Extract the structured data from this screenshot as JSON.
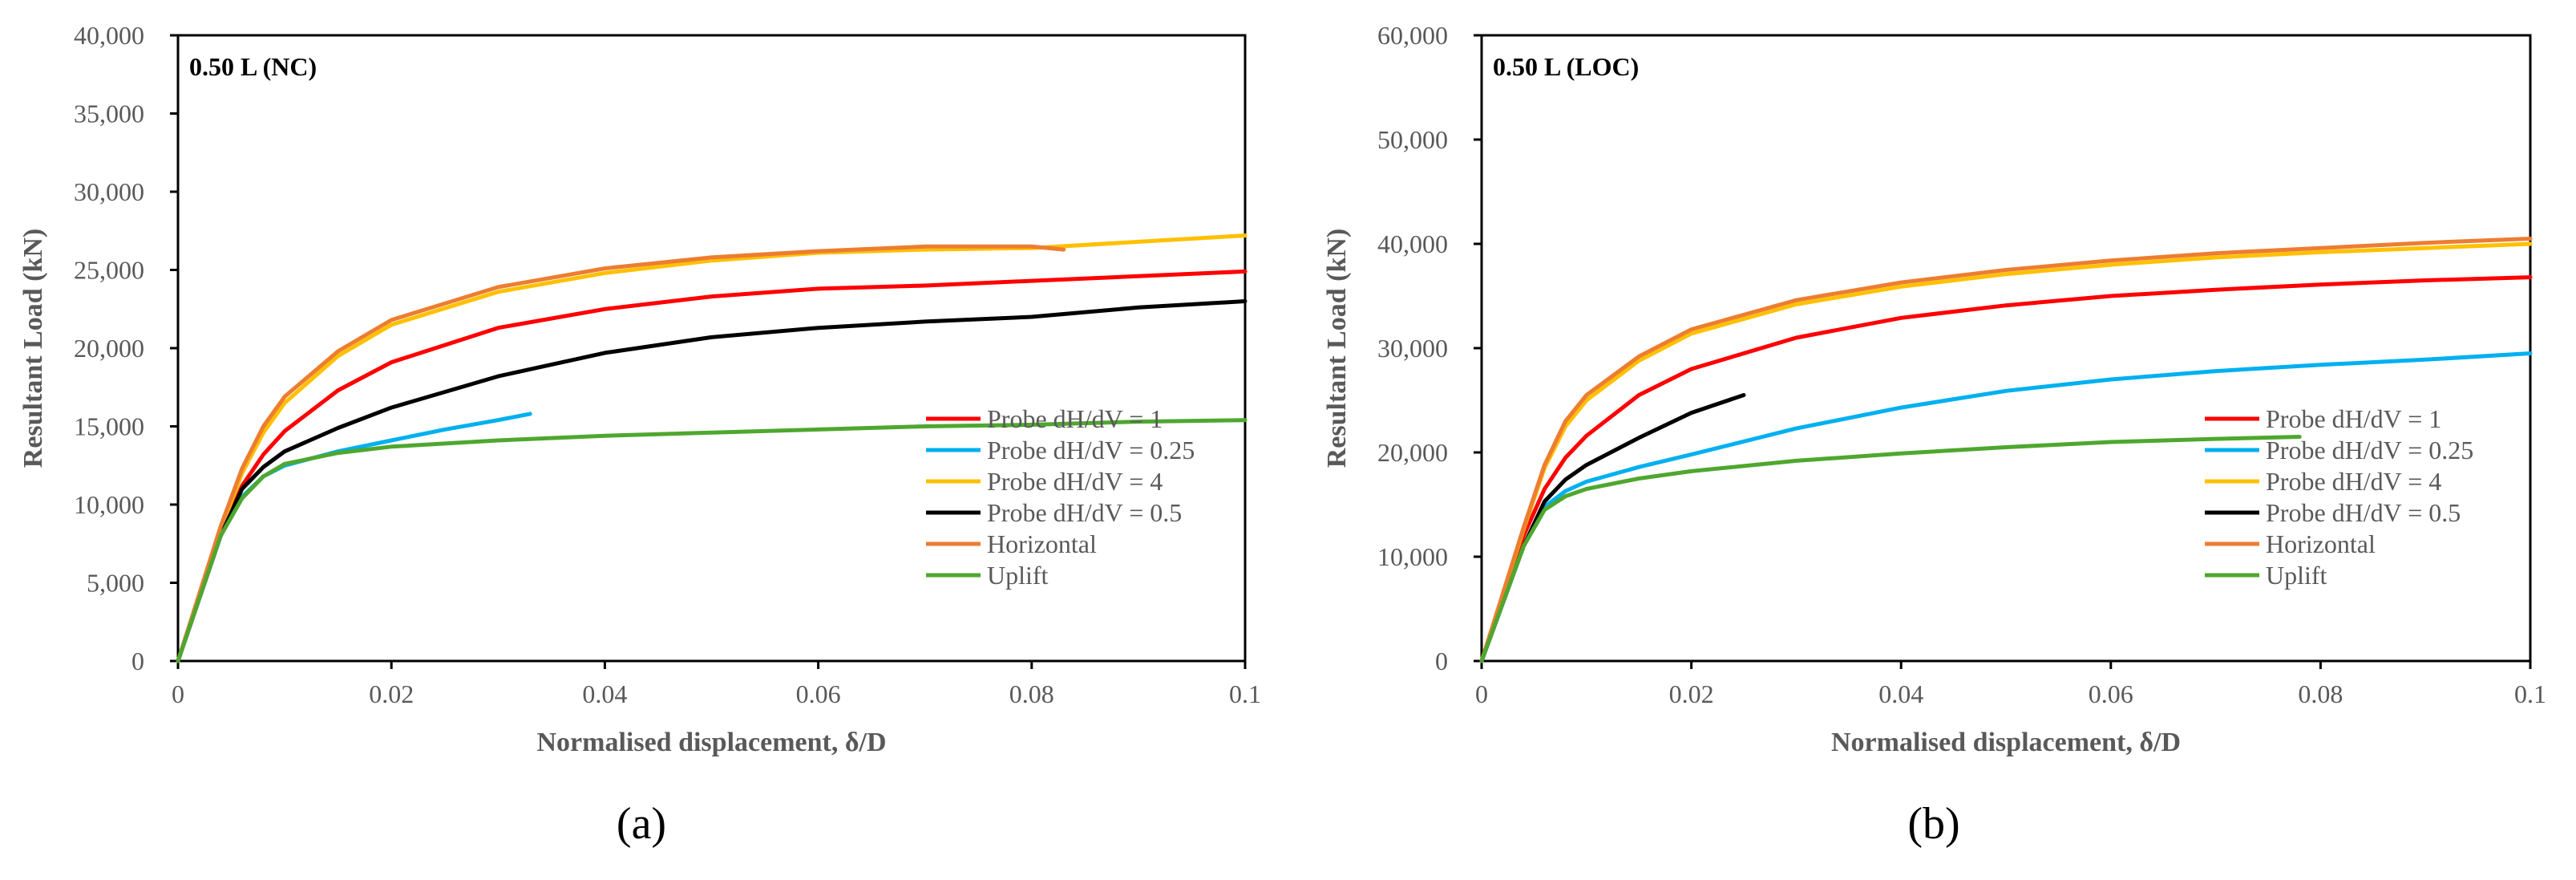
{
  "chart_data": [
    {
      "type": "line",
      "title": "0.50 L (NC)",
      "caption": "(a)",
      "xlabel": "Normalised displacement, δ/D",
      "ylabel": "Resultant  Load (kN)",
      "xlim": [
        0,
        0.1
      ],
      "ylim": [
        0,
        40000
      ],
      "xticks": [
        0,
        0.02,
        0.04,
        0.06,
        0.08,
        0.1
      ],
      "xtick_labels": [
        "0",
        "0.02",
        "0.04",
        "0.06",
        "0.08",
        "0.1"
      ],
      "yticks": [
        0,
        5000,
        10000,
        15000,
        20000,
        25000,
        30000,
        35000,
        40000
      ],
      "ytick_labels": [
        "0",
        "5,000",
        "10,000",
        "15,000",
        "20,000",
        "25,000",
        "30,000",
        "35,000",
        "40,000"
      ],
      "legend_position": "bottom-right",
      "series": [
        {
          "name": "Probe dH/dV = 1",
          "color": "#ff0000",
          "x": [
            0,
            0.002,
            0.004,
            0.006,
            0.008,
            0.01,
            0.015,
            0.02,
            0.03,
            0.04,
            0.05,
            0.06,
            0.07,
            0.08,
            0.09,
            0.1
          ],
          "y": [
            0,
            4000,
            8000,
            11200,
            13200,
            14700,
            17300,
            19100,
            21300,
            22500,
            23300,
            23800,
            24000,
            24300,
            24600,
            24900
          ]
        },
        {
          "name": "Probe dH/dV = 0.25",
          "color": "#00b0f0",
          "x": [
            0,
            0.002,
            0.004,
            0.006,
            0.008,
            0.01,
            0.015,
            0.02,
            0.025,
            0.03,
            0.033
          ],
          "y": [
            0,
            4000,
            8000,
            10500,
            11800,
            12500,
            13400,
            14100,
            14800,
            15400,
            15800
          ]
        },
        {
          "name": "Probe dH/dV = 4",
          "color": "#ffc000",
          "x": [
            0,
            0.002,
            0.004,
            0.006,
            0.008,
            0.01,
            0.015,
            0.02,
            0.03,
            0.04,
            0.05,
            0.06,
            0.07,
            0.08,
            0.09,
            0.1
          ],
          "y": [
            0,
            4200,
            8400,
            12000,
            14600,
            16500,
            19500,
            21500,
            23600,
            24800,
            25600,
            26100,
            26300,
            26400,
            26800,
            27200
          ]
        },
        {
          "name": "Probe dH/dV = 0.5",
          "color": "#000000",
          "x": [
            0,
            0.002,
            0.004,
            0.006,
            0.008,
            0.01,
            0.015,
            0.02,
            0.03,
            0.04,
            0.05,
            0.06,
            0.07,
            0.08,
            0.09,
            0.1
          ],
          "y": [
            0,
            4000,
            8000,
            11000,
            12400,
            13400,
            14900,
            16200,
            18200,
            19700,
            20700,
            21300,
            21700,
            22000,
            22600,
            23000
          ]
        },
        {
          "name": "Horizontal",
          "color": "#ed7d31",
          "x": [
            0,
            0.002,
            0.004,
            0.006,
            0.008,
            0.01,
            0.015,
            0.02,
            0.03,
            0.04,
            0.05,
            0.06,
            0.07,
            0.08,
            0.083
          ],
          "y": [
            0,
            4300,
            8600,
            12300,
            15000,
            16900,
            19800,
            21800,
            23900,
            25100,
            25800,
            26200,
            26500,
            26500,
            26300
          ]
        },
        {
          "name": "Uplift",
          "color": "#4ea72e",
          "x": [
            0,
            0.002,
            0.004,
            0.006,
            0.008,
            0.01,
            0.015,
            0.02,
            0.03,
            0.04,
            0.05,
            0.06,
            0.07,
            0.08,
            0.09,
            0.1
          ],
          "y": [
            0,
            4000,
            8000,
            10400,
            11800,
            12600,
            13300,
            13700,
            14100,
            14400,
            14600,
            14800,
            15000,
            15100,
            15300,
            15400
          ]
        }
      ]
    },
    {
      "type": "line",
      "title": "0.50 L (LOC)",
      "caption": "(b)",
      "xlabel": "Normalised displacement, δ/D",
      "ylabel": "Resultant  Load (kN)",
      "xlim": [
        0,
        0.1
      ],
      "ylim": [
        0,
        60000
      ],
      "xticks": [
        0,
        0.02,
        0.04,
        0.06,
        0.08,
        0.1
      ],
      "xtick_labels": [
        "0",
        "0.02",
        "0.04",
        "0.06",
        "0.08",
        "0.1"
      ],
      "yticks": [
        0,
        10000,
        20000,
        30000,
        40000,
        50000,
        60000
      ],
      "ytick_labels": [
        "0",
        "10,000",
        "20,000",
        "30,000",
        "40,000",
        "50,000",
        "60,000"
      ],
      "legend_position": "bottom-right",
      "series": [
        {
          "name": "Probe dH/dV = 1",
          "color": "#ff0000",
          "x": [
            0,
            0.002,
            0.004,
            0.006,
            0.008,
            0.01,
            0.015,
            0.02,
            0.03,
            0.04,
            0.05,
            0.06,
            0.07,
            0.08,
            0.09,
            0.1
          ],
          "y": [
            0,
            6000,
            12000,
            16500,
            19500,
            21600,
            25500,
            28000,
            31000,
            32900,
            34100,
            35000,
            35600,
            36100,
            36500,
            36800
          ]
        },
        {
          "name": "Probe dH/dV = 0.25",
          "color": "#00b0f0",
          "x": [
            0,
            0.002,
            0.004,
            0.006,
            0.008,
            0.01,
            0.015,
            0.02,
            0.03,
            0.04,
            0.05,
            0.06,
            0.07,
            0.08,
            0.09,
            0.1
          ],
          "y": [
            0,
            5500,
            11000,
            14800,
            16300,
            17200,
            18600,
            19800,
            22300,
            24300,
            25900,
            27000,
            27800,
            28400,
            28900,
            29500
          ]
        },
        {
          "name": "Probe dH/dV = 4",
          "color": "#ffc000",
          "x": [
            0,
            0.002,
            0.004,
            0.006,
            0.008,
            0.01,
            0.015,
            0.02,
            0.03,
            0.04,
            0.05,
            0.06,
            0.07,
            0.08,
            0.09,
            0.1
          ],
          "y": [
            0,
            6300,
            12600,
            18500,
            22500,
            25000,
            28800,
            31400,
            34200,
            35900,
            37100,
            38000,
            38700,
            39200,
            39600,
            40000
          ]
        },
        {
          "name": "Probe dH/dV = 0.5",
          "color": "#000000",
          "x": [
            0,
            0.002,
            0.004,
            0.006,
            0.008,
            0.01,
            0.015,
            0.02,
            0.025
          ],
          "y": [
            0,
            5500,
            11000,
            15300,
            17400,
            18800,
            21400,
            23800,
            25500
          ]
        },
        {
          "name": "Horizontal",
          "color": "#ed7d31",
          "x": [
            0,
            0.002,
            0.004,
            0.006,
            0.008,
            0.01,
            0.015,
            0.02,
            0.03,
            0.04,
            0.05,
            0.06,
            0.07,
            0.08,
            0.09,
            0.1
          ],
          "y": [
            0,
            6400,
            12800,
            18800,
            23000,
            25500,
            29200,
            31800,
            34600,
            36300,
            37500,
            38400,
            39100,
            39600,
            40100,
            40500
          ]
        },
        {
          "name": "Uplift",
          "color": "#4ea72e",
          "x": [
            0,
            0.002,
            0.004,
            0.006,
            0.008,
            0.01,
            0.015,
            0.02,
            0.03,
            0.04,
            0.05,
            0.06,
            0.07,
            0.078
          ],
          "y": [
            0,
            5500,
            11000,
            14500,
            15800,
            16500,
            17500,
            18200,
            19200,
            19900,
            20500,
            21000,
            21300,
            21500
          ]
        }
      ]
    }
  ]
}
